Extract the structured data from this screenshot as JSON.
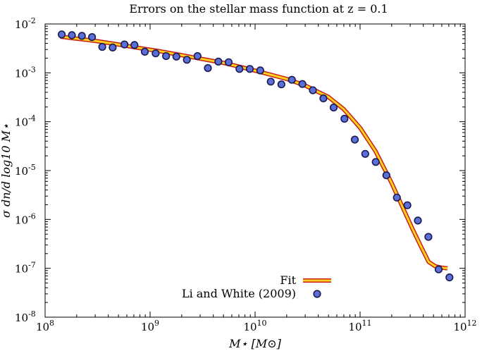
{
  "chart_data": {
    "type": "scatter",
    "title": "Errors on the stellar mass function at z = 0.1",
    "xlabel": "M⋆ [M⊙]",
    "ylabel": "σ dn/d log10 M⋆",
    "xscale": "log",
    "yscale": "log",
    "xlim": [
      100000000.0,
      1000000000000.0
    ],
    "ylim": [
      1e-08,
      0.01
    ],
    "grid": false,
    "legend_position": "bottom-center",
    "x_tick_labels": [
      {
        "base": "10",
        "exp": "8"
      },
      {
        "base": "10",
        "exp": "9"
      },
      {
        "base": "10",
        "exp": "10"
      },
      {
        "base": "10",
        "exp": "11"
      },
      {
        "base": "10",
        "exp": "12"
      }
    ],
    "y_tick_labels": [
      {
        "base": "10",
        "exp": "-8"
      },
      {
        "base": "10",
        "exp": "-7"
      },
      {
        "base": "10",
        "exp": "-6"
      },
      {
        "base": "10",
        "exp": "-5"
      },
      {
        "base": "10",
        "exp": "-4"
      },
      {
        "base": "10",
        "exp": "-3"
      },
      {
        "base": "10",
        "exp": "-2"
      }
    ],
    "series": [
      {
        "name": "Fit",
        "kind": "line",
        "color": "#ffd21a",
        "edge_color": "#c81e1e",
        "x": [
          140000000.0,
          200000000.0,
          300000000.0,
          500000000.0,
          800000000.0,
          1200000000.0,
          2000000000.0,
          3000000000.0,
          5000000000.0,
          8000000000.0,
          12000000000.0,
          20000000000.0,
          30000000000.0,
          50000000000.0,
          70000000000.0,
          100000000000.0,
          140000000000.0,
          200000000000.0,
          260000000000.0,
          320000000000.0,
          380000000000.0,
          450000000000.0,
          520000000000.0,
          600000000000.0,
          680000000000.0
        ],
        "y": [
          0.0055,
          0.005,
          0.0045,
          0.0038,
          0.0032,
          0.0028,
          0.0023,
          0.00195,
          0.0016,
          0.00125,
          0.001,
          0.00075,
          0.00055,
          0.00032,
          0.00018,
          7.5e-05,
          2.5e-05,
          5.5e-06,
          1.6e-06,
          6e-07,
          2.8e-07,
          1.35e-07,
          1.1e-07,
          1.03e-07,
          1e-07
        ]
      },
      {
        "name": "Li and White (2009)",
        "kind": "scatter",
        "color": "#5b6fd9",
        "edge_color": "#1a1a50",
        "x": [
          144000000.0,
          180000000.0,
          224000000.0,
          280000000.0,
          350000000.0,
          440000000.0,
          570000000.0,
          710000000.0,
          890000000.0,
          1130000000.0,
          1420000000.0,
          1780000000.0,
          2240000000.0,
          2830000000.0,
          3550000000.0,
          4470000000.0,
          5600000000.0,
          7100000000.0,
          8900000000.0,
          11200000000.0,
          14100000000.0,
          17800000000.0,
          22400000000.0,
          28200000000.0,
          35500000000.0,
          44700000000.0,
          56000000000.0,
          71000000000.0,
          89000000000.0,
          112000000000.0,
          141000000000.0,
          178000000000.0,
          224000000000.0,
          282000000000.0,
          355000000000.0,
          447000000000.0,
          560000000000.0,
          710000000000.0
        ],
        "y": [
          0.0061,
          0.0059,
          0.0057,
          0.0054,
          0.0034,
          0.0033,
          0.0038,
          0.0037,
          0.0027,
          0.0025,
          0.0022,
          0.00215,
          0.00185,
          0.0022,
          0.00125,
          0.0017,
          0.00165,
          0.0012,
          0.0012,
          0.00112,
          0.00066,
          0.00058,
          0.00072,
          0.00059,
          0.00044,
          0.0003,
          0.000195,
          0.000115,
          4.3e-05,
          2.2e-05,
          1.5e-05,
          8e-06,
          2.8e-06,
          1.95e-06,
          9.5e-07,
          4.4e-07,
          9.5e-08,
          6.5e-08
        ]
      }
    ]
  }
}
